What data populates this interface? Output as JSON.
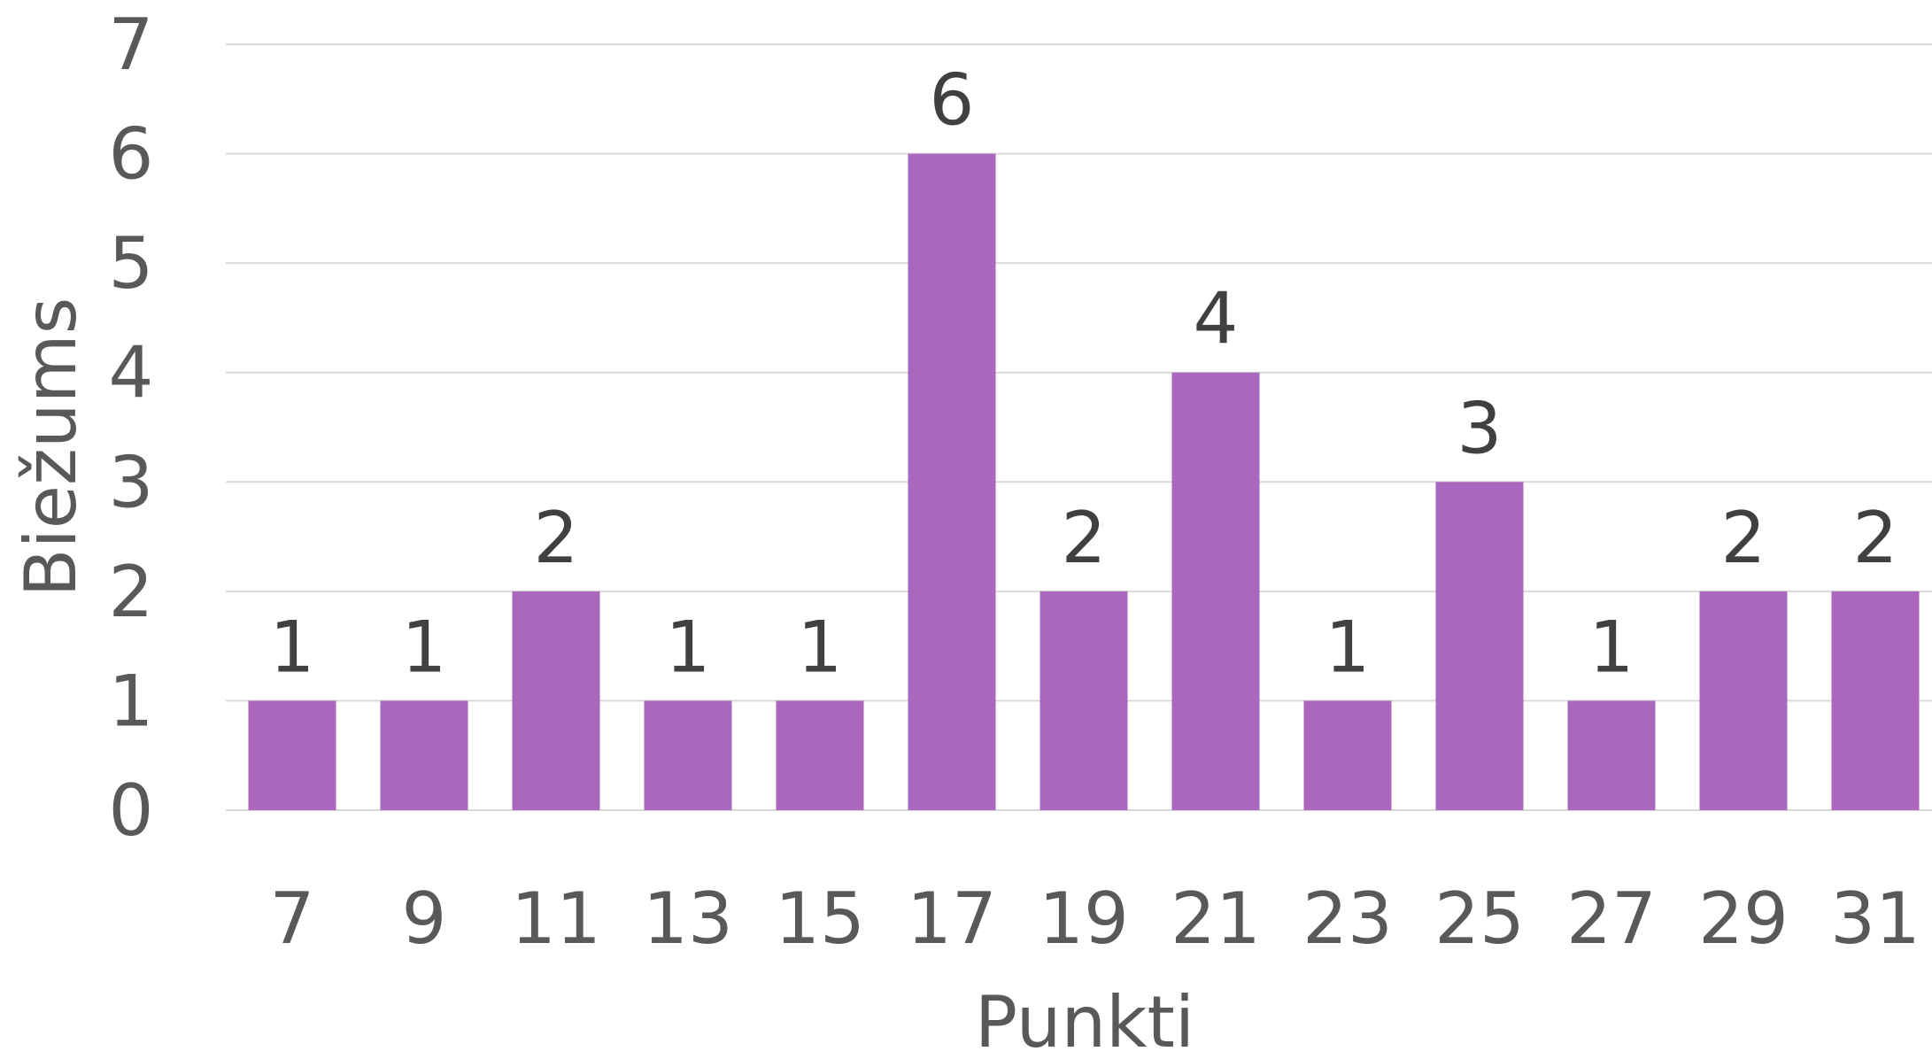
{
  "chart_data": {
    "type": "bar",
    "title": "",
    "xlabel": "Punkti",
    "ylabel": "Biežums",
    "categories": [
      "7",
      "9",
      "11",
      "13",
      "15",
      "17",
      "19",
      "21",
      "23",
      "25",
      "27",
      "29",
      "31"
    ],
    "values": [
      1,
      1,
      2,
      1,
      1,
      6,
      2,
      4,
      1,
      3,
      1,
      2,
      2
    ],
    "ylim": [
      0,
      7
    ],
    "yticks": [
      "0",
      "1",
      "2",
      "3",
      "4",
      "5",
      "6",
      "7"
    ],
    "grid": true,
    "legend": "none",
    "data_labels": true,
    "colors": {
      "bar": "#AB66BD",
      "grid": "#D9D9D9",
      "tick_text": "#595959",
      "label_text": "#404040"
    }
  }
}
